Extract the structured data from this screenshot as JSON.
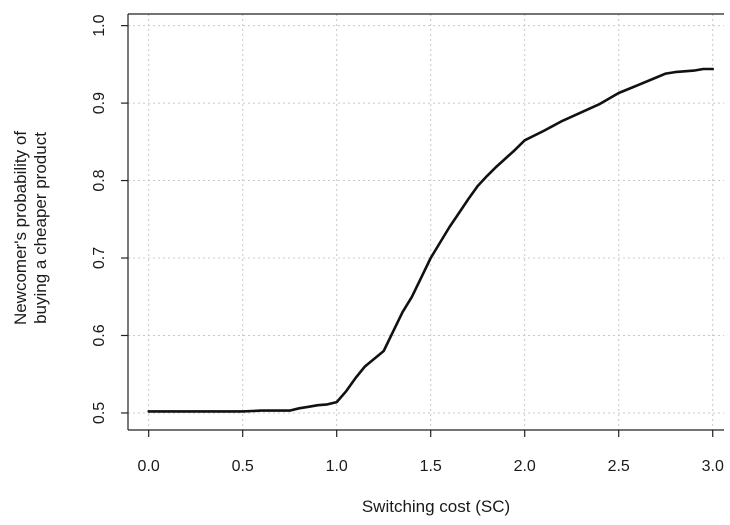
{
  "chart_data": {
    "type": "line",
    "xlabel": "Switching cost (SC)",
    "ylabel_lines": [
      "Newcomer's probability of",
      "buying a cheaper product"
    ],
    "xlim": [
      -0.11,
      3.06
    ],
    "ylim": [
      0.478,
      1.015
    ],
    "x_ticks": [
      0.0,
      0.5,
      1.0,
      1.5,
      2.0,
      2.5,
      3.0
    ],
    "x_tick_labels": [
      "0.0",
      "0.5",
      "1.0",
      "1.5",
      "2.0",
      "2.5",
      "3.0"
    ],
    "y_ticks": [
      0.5,
      0.6,
      0.7,
      0.8,
      0.9,
      1.0
    ],
    "y_tick_labels": [
      "0.5",
      "0.6",
      "0.7",
      "0.8",
      "0.9",
      "1.0"
    ],
    "grid": true,
    "line_color": "#111111",
    "series": [
      {
        "x": [
          0.0,
          0.1,
          0.2,
          0.3,
          0.4,
          0.5,
          0.6,
          0.7,
          0.75,
          0.8,
          0.85,
          0.9,
          0.95,
          1.0,
          1.05,
          1.1,
          1.15,
          1.2,
          1.25,
          1.3,
          1.35,
          1.4,
          1.45,
          1.5,
          1.55,
          1.6,
          1.65,
          1.7,
          1.75,
          1.8,
          1.85,
          1.9,
          1.95,
          2.0,
          2.1,
          2.2,
          2.3,
          2.4,
          2.5,
          2.6,
          2.7,
          2.75,
          2.8,
          2.9,
          2.95,
          3.0
        ],
        "values": [
          0.502,
          0.502,
          0.502,
          0.502,
          0.502,
          0.502,
          0.503,
          0.503,
          0.503,
          0.506,
          0.508,
          0.51,
          0.511,
          0.514,
          0.528,
          0.545,
          0.56,
          0.57,
          0.58,
          0.605,
          0.63,
          0.65,
          0.675,
          0.7,
          0.72,
          0.74,
          0.758,
          0.776,
          0.793,
          0.806,
          0.818,
          0.829,
          0.84,
          0.852,
          0.864,
          0.877,
          0.888,
          0.899,
          0.913,
          0.923,
          0.933,
          0.938,
          0.94,
          0.942,
          0.944,
          0.944
        ]
      }
    ]
  }
}
